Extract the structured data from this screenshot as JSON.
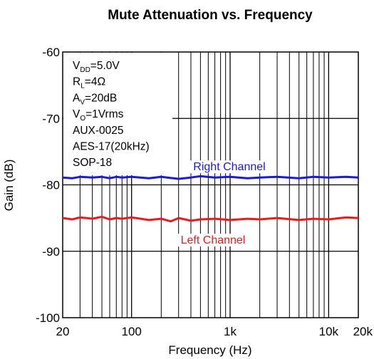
{
  "chart_data": {
    "type": "line",
    "title": "Mute Attenuation vs. Frequency",
    "xlabel": "Frequency (Hz)",
    "ylabel": "Gain (dB)",
    "xscale": "log",
    "xlim": [
      20,
      20000
    ],
    "ylim": [
      -100,
      -60
    ],
    "x_ticks": [
      {
        "value": 20,
        "label": "20"
      },
      {
        "value": 100,
        "label": "100"
      },
      {
        "value": 1000,
        "label": "1k"
      },
      {
        "value": 10000,
        "label": "10k"
      },
      {
        "value": 20000,
        "label": "20k"
      }
    ],
    "y_ticks": [
      {
        "value": -60,
        "label": "-60"
      },
      {
        "value": -70,
        "label": "-70"
      },
      {
        "value": -80,
        "label": "-80"
      },
      {
        "value": -90,
        "label": "-90"
      },
      {
        "value": -100,
        "label": "-100"
      }
    ],
    "grid": true,
    "conditions": [
      {
        "main": "V",
        "sub": "DD",
        "rest": "=5.0V"
      },
      {
        "main": "R",
        "sub": "L",
        "rest": "=4Ω"
      },
      {
        "main": "A",
        "sub": "V",
        "rest": "=20dB"
      },
      {
        "main": "V",
        "sub": "O",
        "rest": "=1Vrms"
      },
      {
        "main": "AUX-0025",
        "sub": "",
        "rest": ""
      },
      {
        "main": "AES-17(20kHz)",
        "sub": "",
        "rest": ""
      },
      {
        "main": "SOP-18",
        "sub": "",
        "rest": ""
      }
    ],
    "series": [
      {
        "name": "Right Channel",
        "color": "#1a1adc",
        "x": [
          20,
          25,
          30,
          40,
          50,
          60,
          70,
          80,
          100,
          150,
          200,
          300,
          400,
          500,
          700,
          1000,
          1500,
          2000,
          3000,
          5000,
          7000,
          10000,
          15000,
          20000
        ],
        "y": [
          -78.9,
          -79.0,
          -78.8,
          -78.9,
          -78.8,
          -79.0,
          -78.8,
          -78.9,
          -78.8,
          -79.0,
          -78.8,
          -79.1,
          -78.9,
          -78.7,
          -78.9,
          -78.8,
          -79.0,
          -78.9,
          -78.8,
          -79.0,
          -78.8,
          -78.9,
          -78.8,
          -78.9
        ]
      },
      {
        "name": "Left Channel",
        "color": "#e81c1c",
        "x": [
          20,
          25,
          30,
          40,
          50,
          60,
          70,
          80,
          100,
          150,
          200,
          250,
          300,
          400,
          500,
          700,
          1000,
          1500,
          2000,
          3000,
          5000,
          7000,
          10000,
          15000,
          20000
        ],
        "y": [
          -85.0,
          -85.2,
          -84.9,
          -85.1,
          -84.8,
          -85.2,
          -85.0,
          -85.1,
          -84.9,
          -85.3,
          -85.1,
          -85.5,
          -85.0,
          -85.4,
          -85.2,
          -85.1,
          -85.3,
          -85.1,
          -85.2,
          -85.0,
          -85.3,
          -85.1,
          -85.2,
          -84.9,
          -85.0
        ]
      }
    ]
  }
}
